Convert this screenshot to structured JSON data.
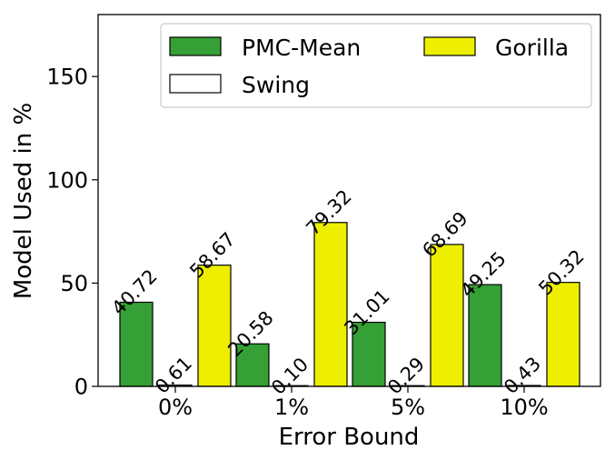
{
  "chart_data": {
    "type": "bar",
    "xlabel": "Error Bound",
    "ylabel": "Model Used in %",
    "categories": [
      "0%",
      "1%",
      "5%",
      "10%"
    ],
    "ylim": [
      0,
      180
    ],
    "yticks": [
      0,
      50,
      100,
      150
    ],
    "grid": false,
    "legend_position": "top-right",
    "series": [
      {
        "name": "PMC-Mean",
        "color": "#35a035",
        "values": [
          40.72,
          20.58,
          31.01,
          49.25
        ],
        "labels": [
          "40.72",
          "20.58",
          "31.01",
          "49.25"
        ]
      },
      {
        "name": "Swing",
        "color": "#ffffff",
        "values": [
          0.61,
          0.1,
          0.29,
          0.43
        ],
        "labels": [
          "0.61",
          "0.10",
          "0.29",
          "0.43"
        ]
      },
      {
        "name": "Gorilla",
        "color": "#eeee00",
        "values": [
          58.67,
          79.32,
          68.69,
          50.32
        ],
        "labels": [
          "58.67",
          "79.32",
          "68.69",
          "50.32"
        ]
      }
    ]
  }
}
